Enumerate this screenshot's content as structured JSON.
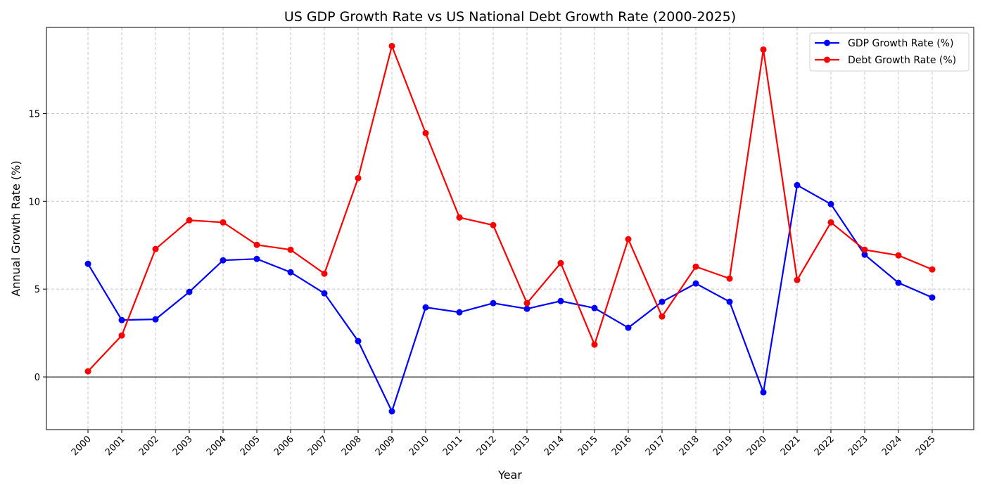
{
  "chart_data": {
    "type": "line",
    "title": "US GDP Growth Rate vs US National Debt Growth Rate (2000-2025)",
    "xlabel": "Year",
    "ylabel": "Annual Growth Rate (%)",
    "x": [
      2000,
      2001,
      2002,
      2003,
      2004,
      2005,
      2006,
      2007,
      2008,
      2009,
      2010,
      2011,
      2012,
      2013,
      2014,
      2015,
      2016,
      2017,
      2018,
      2019,
      2020,
      2021,
      2022,
      2023,
      2024,
      2025
    ],
    "xlim": [
      1998.77,
      2026.23
    ],
    "ylim": [
      -3,
      19.9
    ],
    "yticks": [
      0,
      5,
      10,
      15
    ],
    "grid": true,
    "zero_line": true,
    "legend_position": "top-right",
    "series": [
      {
        "name": "GDP Growth Rate (%)",
        "color": "#0000ff",
        "values": [
          6.44,
          3.24,
          3.28,
          4.84,
          6.64,
          6.72,
          5.96,
          4.76,
          2.04,
          -1.96,
          3.96,
          3.68,
          4.2,
          3.88,
          4.32,
          3.92,
          2.8,
          4.28,
          5.32,
          4.28,
          -0.88,
          10.92,
          9.84,
          6.96,
          5.36,
          4.52
        ]
      },
      {
        "name": "Debt Growth Rate (%)",
        "color": "#ff0000",
        "values": [
          0.32,
          2.36,
          7.28,
          8.92,
          8.8,
          7.52,
          7.24,
          5.88,
          11.32,
          18.84,
          13.88,
          9.08,
          8.64,
          4.2,
          6.48,
          1.84,
          7.84,
          3.44,
          6.28,
          5.6,
          18.64,
          5.52,
          8.8,
          7.24,
          6.92,
          6.12
        ]
      }
    ]
  }
}
